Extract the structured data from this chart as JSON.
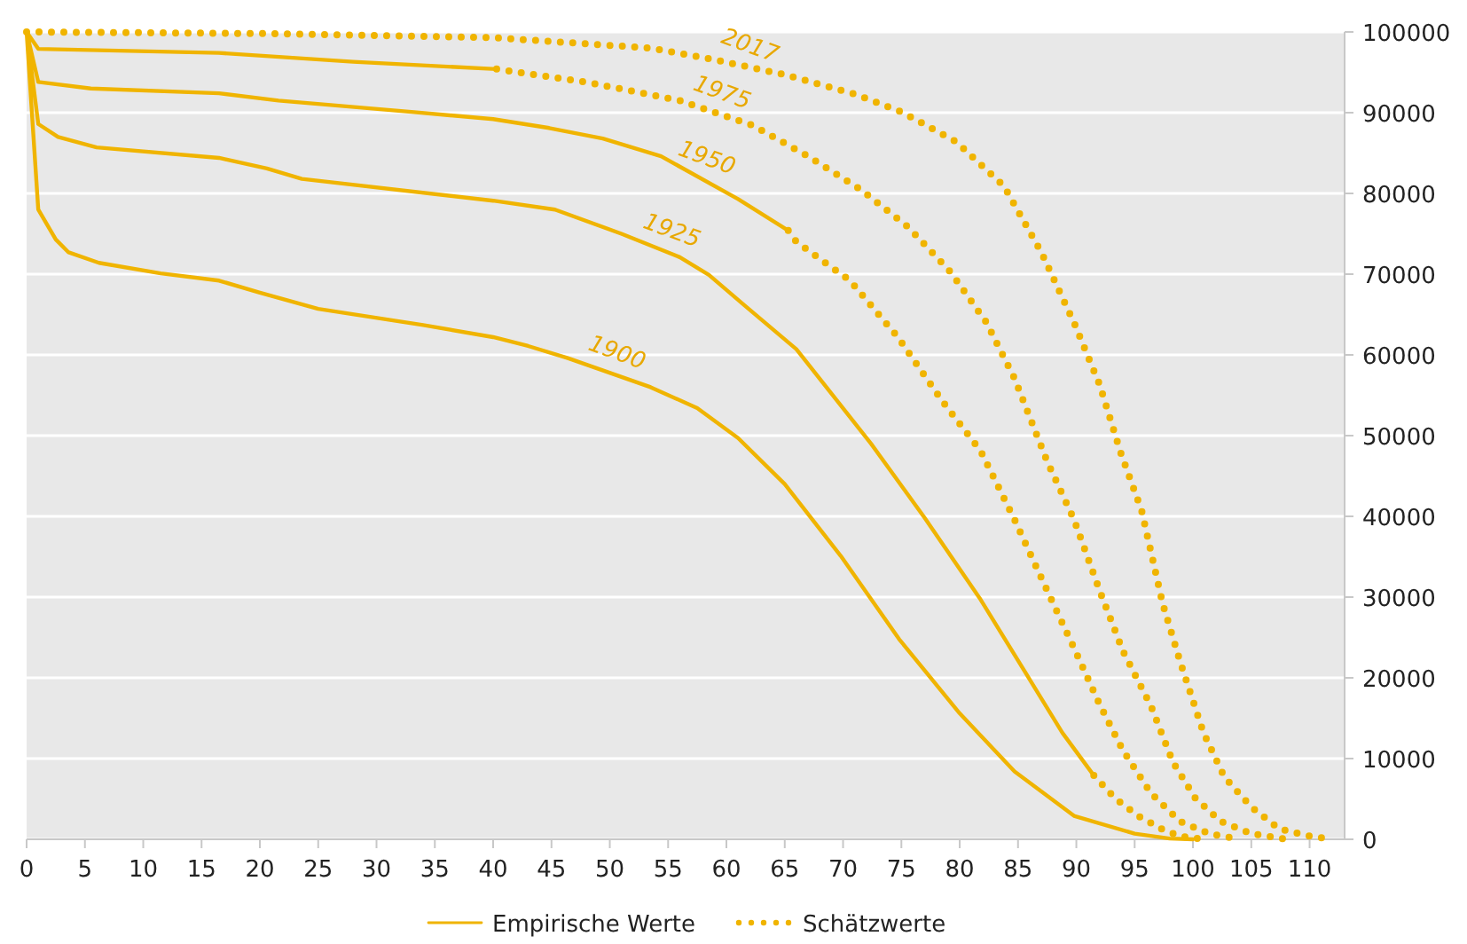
{
  "chart_data": {
    "type": "line",
    "xlim": [
      0,
      113
    ],
    "xticks": [
      0,
      5,
      10,
      15,
      20,
      25,
      30,
      35,
      40,
      45,
      50,
      55,
      60,
      65,
      70,
      75,
      80,
      85,
      90,
      95,
      100,
      105,
      110
    ],
    "ylim": [
      0,
      100000
    ],
    "yticks": [
      0,
      10000,
      20000,
      30000,
      40000,
      50000,
      60000,
      70000,
      80000,
      90000,
      100000
    ],
    "grid": "y",
    "legend": "bottom",
    "series": [
      {
        "name": "Empirische Werte",
        "color": "#f0b400",
        "line_style": "solid",
        "x": [
          0,
          1,
          2.5,
          3.6,
          6.2,
          11.5,
          16.5,
          20,
          25,
          34,
          40,
          43,
          46.4,
          53.5,
          57.5,
          61,
          65,
          69.8,
          74.8,
          80,
          84.7,
          89.8,
          95,
          98,
          100,
          null,
          0,
          1,
          2.7,
          6,
          16.5,
          20.6,
          23.6,
          40,
          45.3,
          51,
          56,
          58.5,
          61.5,
          66,
          72.4,
          77,
          81.7,
          86,
          88.8,
          91.5,
          null,
          0,
          1,
          5.5,
          16.5,
          21.6,
          33,
          40,
          44.8,
          49.4,
          54.4,
          61,
          65.3,
          null,
          0,
          1,
          16.5,
          28,
          40.3
        ],
        "values": [
          100000,
          78000,
          74300,
          72700,
          71400,
          70100,
          69200,
          67700,
          65700,
          63700,
          62200,
          61100,
          59600,
          56000,
          53400,
          49700,
          44000,
          35100,
          24800,
          15600,
          8400,
          2900,
          700,
          100,
          0,
          null,
          100000,
          88600,
          87000,
          85700,
          84400,
          83100,
          81800,
          79100,
          78000,
          75000,
          72100,
          69900,
          66200,
          60700,
          49000,
          39800,
          29900,
          19800,
          13200,
          7900,
          null,
          100000,
          93800,
          93000,
          92400,
          91500,
          90100,
          89200,
          88100,
          86800,
          84600,
          79300,
          75400,
          null,
          100000,
          97900,
          97400,
          96300,
          95400
        ]
      },
      {
        "name": "Schätzwerte",
        "color": "#f0b400",
        "line_style": "dotted",
        "x": [
          91.5,
          93.3,
          95.3,
          97.3,
          98.8,
          101,
          null,
          65.3,
          66,
          70.6,
          74.7,
          78.6,
          81.8,
          84.7,
          87.5,
          89.8,
          92,
          94,
          96.4,
          98.9,
          101.4,
          104,
          null,
          40.3,
          48.3,
          56,
          62.3,
          67,
          71.6,
          75.6,
          79.2,
          82.3,
          84.7,
          87.5,
          89.8,
          92,
          94,
          96.4,
          98.3,
          100.2,
          102.4,
          105,
          108,
          null,
          0,
          20,
          40,
          53.5,
          58.5,
          65,
          71,
          75,
          79.7,
          83.8,
          87,
          89.8,
          92,
          93.8,
          95.6,
          97.4,
          98.9,
          100.9,
          102.7,
          105,
          107.4,
          110,
          112
        ],
        "values": [
          7900,
          5100,
          2900,
          1300,
          400,
          0,
          null,
          75400,
          74000,
          69200,
          62200,
          54100,
          48100,
          39600,
          30800,
          23700,
          16700,
          11000,
          5700,
          2200,
          700,
          0,
          null,
          95400,
          93700,
          91500,
          88400,
          84600,
          80400,
          75800,
          70300,
          64000,
          57100,
          46800,
          39600,
          30800,
          23300,
          16500,
          9500,
          5100,
          2200,
          700,
          0,
          null,
          100000,
          99800,
          99300,
          98000,
          96700,
          94700,
          92300,
          90100,
          86400,
          80900,
          72700,
          64000,
          56300,
          47900,
          40700,
          29200,
          22000,
          13200,
          7700,
          4000,
          1300,
          400,
          0
        ]
      }
    ],
    "annotations": [
      {
        "text": "2017",
        "x": 61.4,
        "y": 95800
      },
      {
        "text": "1975",
        "x": 59,
        "y": 90000
      },
      {
        "text": "1950",
        "x": 57.7,
        "y": 81900
      },
      {
        "text": "1925",
        "x": 54.7,
        "y": 72900
      },
      {
        "text": "1900",
        "x": 50,
        "y": 57800
      }
    ]
  }
}
